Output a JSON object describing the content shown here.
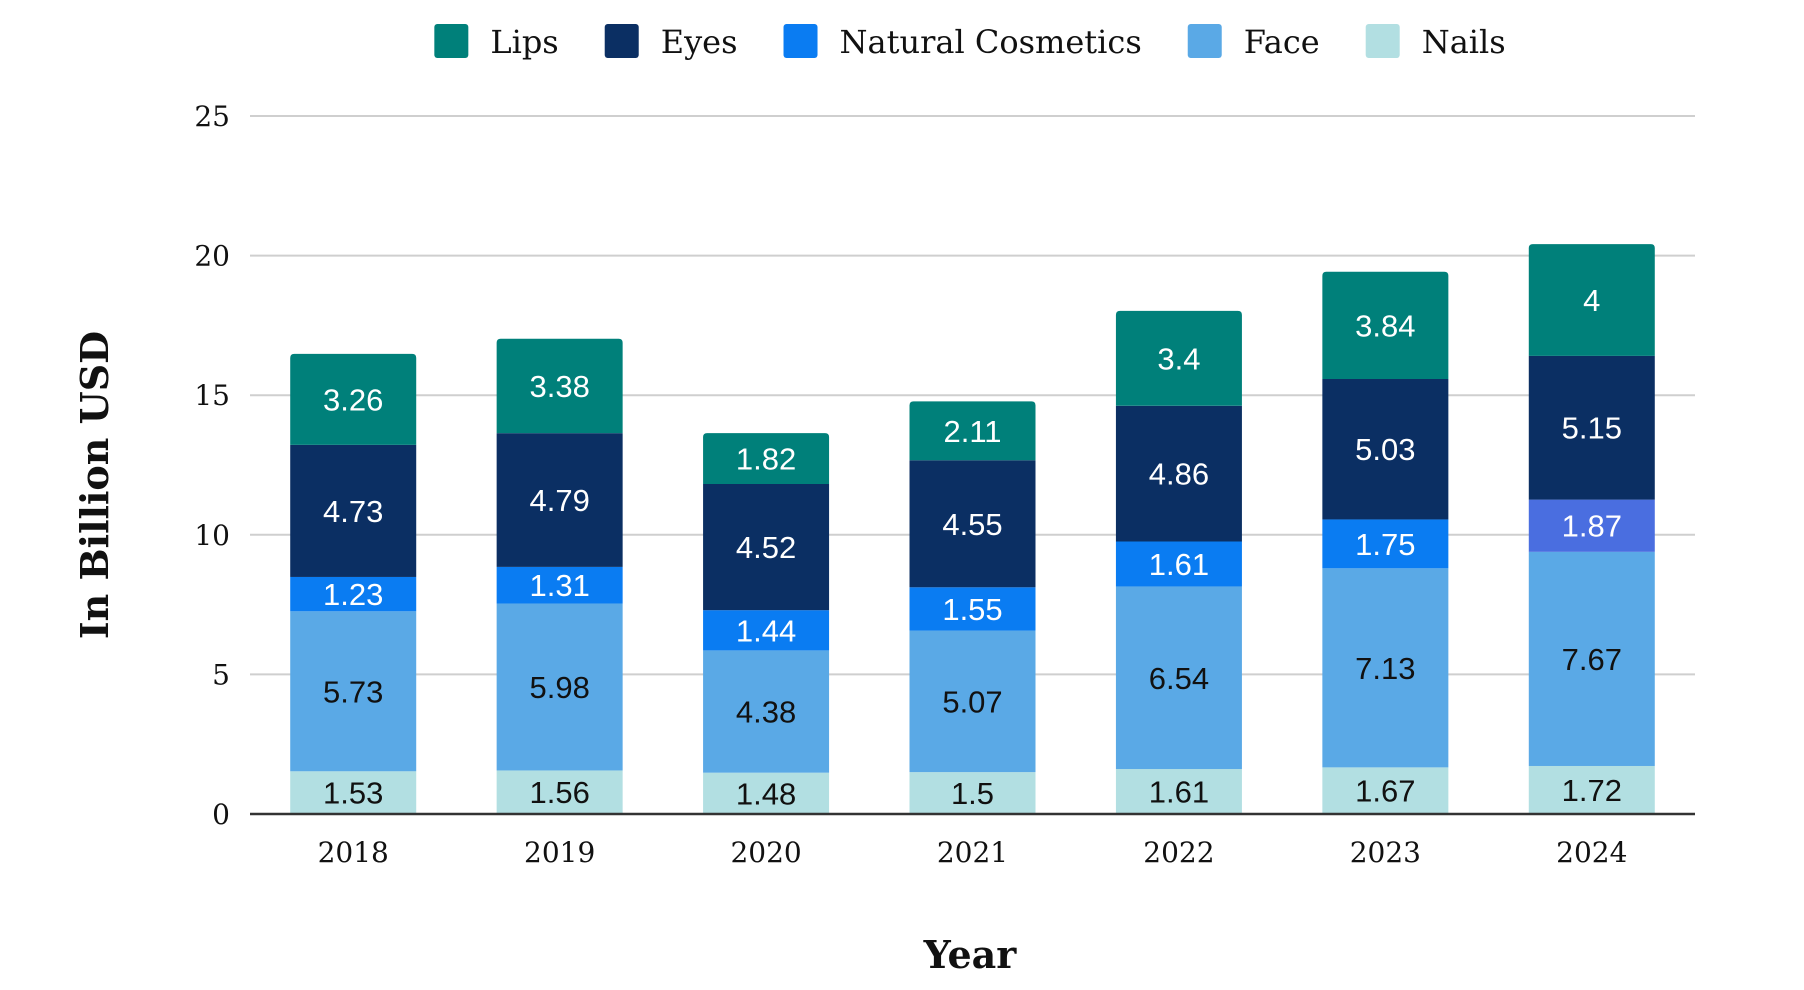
{
  "chart_data": {
    "type": "bar",
    "stacked": true,
    "title": "",
    "xlabel": "Year",
    "ylabel": "In Billion USD",
    "categories": [
      "2018",
      "2019",
      "2020",
      "2021",
      "2022",
      "2023",
      "2024"
    ],
    "ylim": [
      0,
      25
    ],
    "yticks": [
      0,
      5,
      10,
      15,
      20,
      25
    ],
    "grid": true,
    "legend_position": "top",
    "series": [
      {
        "name": "Nails",
        "color": "#b2dfe2",
        "label_color": "#111111",
        "values": [
          1.53,
          1.56,
          1.48,
          1.5,
          1.61,
          1.67,
          1.72
        ]
      },
      {
        "name": "Face",
        "color": "#5aa9e6",
        "label_color": "#111111",
        "values": [
          5.73,
          5.98,
          4.38,
          5.07,
          6.54,
          7.13,
          7.67
        ]
      },
      {
        "name": "Natural Cosmetics",
        "color": "#0a7cf2",
        "label_color": "#ffffff",
        "values": [
          1.23,
          1.31,
          1.44,
          1.55,
          1.61,
          1.75,
          1.87
        ],
        "point_colors": {
          "6": "#4a6ee0"
        }
      },
      {
        "name": "Eyes",
        "color": "#0b2f63",
        "label_color": "#ffffff",
        "values": [
          4.73,
          4.79,
          4.52,
          4.55,
          4.86,
          5.03,
          5.15
        ]
      },
      {
        "name": "Lips",
        "color": "#00807a",
        "label_color": "#ffffff",
        "values": [
          3.26,
          3.38,
          1.82,
          2.11,
          3.4,
          3.84,
          4
        ]
      }
    ],
    "legend_order": [
      "Lips",
      "Eyes",
      "Natural Cosmetics",
      "Face",
      "Nails"
    ]
  }
}
